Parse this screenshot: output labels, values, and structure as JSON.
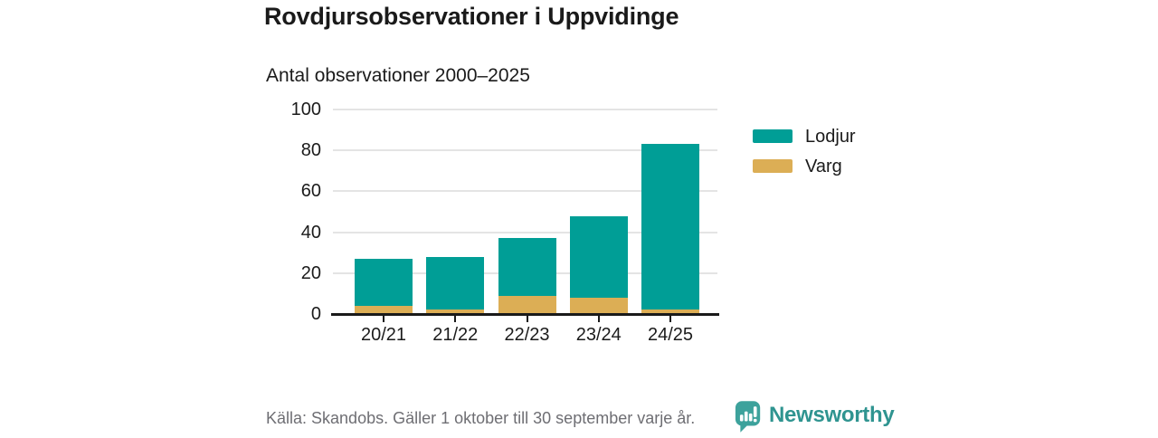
{
  "title": "Rovdjursobservationer i Uppvidinge",
  "subtitle": "Antal observationer 2000–2025",
  "legend": [
    {
      "label": "Lodjur",
      "color": "#009e96"
    },
    {
      "label": "Varg",
      "color": "#dcae55"
    }
  ],
  "footer": {
    "source": "Källa: Skandobs. Gäller 1 oktober till 30 september varje år.",
    "brand": "Newsworthy"
  },
  "colors": {
    "lodjur": "#009e96",
    "varg": "#dcae55",
    "grid": "#e4e4e4",
    "axis": "#1a1a1a",
    "text": "#1b1b1b",
    "source_text": "#6e6e73",
    "brand_teal": "#2f9490",
    "logo_teal": "#3da29c",
    "background": "#ffffff"
  },
  "chart_data": {
    "type": "bar",
    "stacked": true,
    "title": "Rovdjursobservationer i Uppvidinge",
    "subtitle": "Antal observationer 2000–2025",
    "categories": [
      "20/21",
      "21/22",
      "22/23",
      "23/24",
      "24/25"
    ],
    "series": [
      {
        "name": "Varg",
        "color": "#dcae55",
        "values": [
          4,
          2,
          9,
          8,
          2
        ]
      },
      {
        "name": "Lodjur",
        "color": "#009e96",
        "values": [
          23,
          26,
          28,
          40,
          81
        ]
      }
    ],
    "stack_order_bottom_to_top": [
      "Varg",
      "Lodjur"
    ],
    "totals": [
      27,
      28,
      37,
      48,
      83
    ],
    "xlabel": "",
    "ylabel": "",
    "ylim": [
      0,
      100
    ],
    "yticks": [
      0,
      20,
      40,
      60,
      80,
      100
    ],
    "grid": true,
    "legend_position": "right"
  }
}
